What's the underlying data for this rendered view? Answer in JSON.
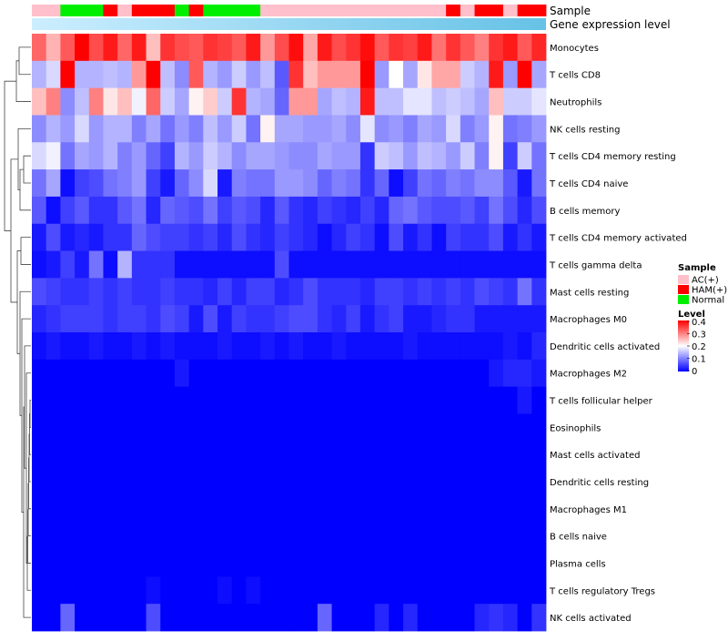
{
  "chart_data": {
    "type": "heatmap",
    "title": "",
    "annotation_labels": [
      "Sample",
      "Gene expression level"
    ],
    "legend_sample_title": "Sample",
    "legend_sample_entries": [
      {
        "name": "AC(+)",
        "color": "#ffc0cb"
      },
      {
        "name": "HAM(+)",
        "color": "#ff0000"
      },
      {
        "name": "Normal",
        "color": "#00ee00"
      }
    ],
    "legend_level_title": "Level",
    "legend_level_ticks": [
      "0.4",
      "0.3",
      "0.2",
      "0.1",
      "0"
    ],
    "color_scale": {
      "min": 0,
      "mid": 0.2,
      "max": 0.4,
      "low_color": "#0000ff",
      "mid_color": "#ffffff",
      "high_color": "#ff0000"
    },
    "expression_gradient": {
      "from": "#cceeff",
      "to": "#66c2e6"
    },
    "sample_groups": [
      "AC(+)",
      "AC(+)",
      "Normal",
      "Normal",
      "Normal",
      "HAM(+)",
      "AC(+)",
      "HAM(+)",
      "HAM(+)",
      "HAM(+)",
      "Normal",
      "HAM(+)",
      "Normal",
      "Normal",
      "Normal",
      "Normal",
      "AC(+)",
      "AC(+)",
      "AC(+)",
      "AC(+)",
      "AC(+)",
      "AC(+)",
      "AC(+)",
      "AC(+)",
      "AC(+)",
      "AC(+)",
      "AC(+)",
      "AC(+)",
      "AC(+)",
      "HAM(+)",
      "AC(+)",
      "HAM(+)",
      "HAM(+)",
      "AC(+)",
      "HAM(+)",
      "HAM(+)"
    ],
    "rows": [
      "Monocytes",
      "T cells CD8",
      "Neutrophils",
      "NK cells resting",
      "T cells CD4 memory resting",
      "T cells CD4 naive",
      "B cells memory",
      "T cells CD4 memory activated",
      "T cells gamma delta",
      "Mast cells resting",
      "Macrophages M0",
      "Dendritic cells activated",
      "Macrophages M2",
      "T cells follicular helper",
      "Eosinophils",
      "Mast cells activated",
      "Dendritic cells resting",
      "Macrophages M1",
      "B cells naive",
      "Plasma cells",
      "T cells regulatory  Tregs",
      "NK cells activated"
    ],
    "values": [
      [
        0.32,
        0.26,
        0.33,
        0.4,
        0.34,
        0.38,
        0.32,
        0.38,
        0.25,
        0.36,
        0.34,
        0.33,
        0.36,
        0.35,
        0.33,
        0.38,
        0.28,
        0.34,
        0.39,
        0.27,
        0.38,
        0.34,
        0.36,
        0.39,
        0.33,
        0.36,
        0.35,
        0.38,
        0.31,
        0.36,
        0.33,
        0.3,
        0.36,
        0.38,
        0.33,
        0.37
      ],
      [
        0.14,
        0.17,
        0.4,
        0.14,
        0.14,
        0.15,
        0.14,
        0.28,
        0.4,
        0.15,
        0.11,
        0.33,
        0.14,
        0.12,
        0.16,
        0.12,
        0.15,
        0.07,
        0.36,
        0.25,
        0.28,
        0.28,
        0.28,
        0.4,
        0.12,
        0.2,
        0.13,
        0.22,
        0.27,
        0.27,
        0.16,
        0.14,
        0.38,
        0.12,
        0.4,
        0.13
      ],
      [
        0.25,
        0.3,
        0.11,
        0.15,
        0.3,
        0.22,
        0.25,
        0.19,
        0.32,
        0.16,
        0.13,
        0.21,
        0.24,
        0.16,
        0.36,
        0.14,
        0.13,
        0.08,
        0.28,
        0.28,
        0.13,
        0.15,
        0.14,
        0.38,
        0.15,
        0.15,
        0.18,
        0.18,
        0.15,
        0.16,
        0.15,
        0.13,
        0.25,
        0.16,
        0.16,
        0.18
      ],
      [
        0.11,
        0.14,
        0.12,
        0.17,
        0.12,
        0.14,
        0.14,
        0.1,
        0.13,
        0.09,
        0.12,
        0.1,
        0.15,
        0.12,
        0.16,
        0.09,
        0.21,
        0.13,
        0.13,
        0.12,
        0.12,
        0.13,
        0.11,
        0.18,
        0.11,
        0.12,
        0.1,
        0.13,
        0.12,
        0.17,
        0.1,
        0.12,
        0.21,
        0.09,
        0.1,
        0.12
      ],
      [
        0.17,
        0.19,
        0.09,
        0.13,
        0.12,
        0.14,
        0.1,
        0.12,
        0.08,
        0.05,
        0.14,
        0.12,
        0.16,
        0.14,
        0.11,
        0.13,
        0.13,
        0.12,
        0.11,
        0.11,
        0.13,
        0.12,
        0.12,
        0.04,
        0.16,
        0.15,
        0.12,
        0.15,
        0.14,
        0.12,
        0.16,
        0.1,
        0.21,
        0.05,
        0.16,
        0.09
      ],
      [
        0.09,
        0.13,
        0.01,
        0.05,
        0.06,
        0.09,
        0.1,
        0.12,
        0.05,
        0.02,
        0.08,
        0.11,
        0.17,
        0.02,
        0.1,
        0.09,
        0.09,
        0.12,
        0.12,
        0.11,
        0.08,
        0.1,
        0.09,
        0.04,
        0.08,
        0.01,
        0.05,
        0.09,
        0.08,
        0.1,
        0.09,
        0.11,
        0.11,
        0.07,
        0.02,
        0.09
      ],
      [
        0.07,
        0.01,
        0.05,
        0.07,
        0.04,
        0.04,
        0.07,
        0.09,
        0.03,
        0.08,
        0.07,
        0.06,
        0.09,
        0.05,
        0.07,
        0.06,
        0.03,
        0.07,
        0.04,
        0.03,
        0.05,
        0.04,
        0.03,
        0.05,
        0.03,
        0.08,
        0.09,
        0.07,
        0.06,
        0.06,
        0.07,
        0.05,
        0.09,
        0.06,
        0.03,
        0.06
      ],
      [
        0.02,
        0.06,
        0.02,
        0.03,
        0.02,
        0.04,
        0.04,
        0.08,
        0.06,
        0.05,
        0.05,
        0.04,
        0.05,
        0.03,
        0.06,
        0.04,
        0.03,
        0.05,
        0.04,
        0.03,
        0.01,
        0.03,
        0.05,
        0.04,
        0.01,
        0.06,
        0.02,
        0.04,
        0.01,
        0.05,
        0.04,
        0.04,
        0.06,
        0.02,
        0.04,
        0.02
      ],
      [
        0.01,
        0.02,
        0.05,
        0.02,
        0.09,
        0.01,
        0.14,
        0.04,
        0.04,
        0.04,
        0.01,
        0.01,
        0.01,
        0.01,
        0.01,
        0.01,
        0.01,
        0.06,
        0.01,
        0.01,
        0.01,
        0.01,
        0.01,
        0.01,
        0.01,
        0.01,
        0.01,
        0.01,
        0.01,
        0.01,
        0.01,
        0.01,
        0.01,
        0.01,
        0.01,
        0.01
      ],
      [
        0.06,
        0.05,
        0.04,
        0.04,
        0.05,
        0.04,
        0.05,
        0.04,
        0.04,
        0.05,
        0.04,
        0.04,
        0.03,
        0.05,
        0.03,
        0.05,
        0.05,
        0.03,
        0.04,
        0.06,
        0.04,
        0.04,
        0.04,
        0.03,
        0.05,
        0.05,
        0.04,
        0.05,
        0.04,
        0.05,
        0.04,
        0.06,
        0.05,
        0.04,
        0.09,
        0.04
      ],
      [
        0.03,
        0.04,
        0.05,
        0.05,
        0.05,
        0.04,
        0.05,
        0.05,
        0.04,
        0.06,
        0.05,
        0.02,
        0.06,
        0.02,
        0.05,
        0.04,
        0.04,
        0.05,
        0.06,
        0.06,
        0.04,
        0.03,
        0.05,
        0.02,
        0.04,
        0.05,
        0.02,
        0.02,
        0.03,
        0.04,
        0.04,
        0.02,
        0.02,
        0.02,
        0.02,
        0.02
      ],
      [
        0.01,
        0.02,
        0.01,
        0.01,
        0.02,
        0.01,
        0.01,
        0.02,
        0.01,
        0.02,
        0.01,
        0.01,
        0.01,
        0.02,
        0.01,
        0.01,
        0.02,
        0.01,
        0.02,
        0.01,
        0.01,
        0.02,
        0.01,
        0.01,
        0.01,
        0.01,
        0.02,
        0.01,
        0.01,
        0.01,
        0.01,
        0.01,
        0.01,
        0.02,
        0.01,
        0.03
      ],
      [
        0.0,
        0.0,
        0.0,
        0.0,
        0.0,
        0.0,
        0.0,
        0.0,
        0.0,
        0.0,
        0.02,
        0.0,
        0.0,
        0.0,
        0.0,
        0.0,
        0.0,
        0.0,
        0.0,
        0.0,
        0.0,
        0.0,
        0.0,
        0.0,
        0.0,
        0.0,
        0.0,
        0.0,
        0.0,
        0.0,
        0.0,
        0.0,
        0.02,
        0.03,
        0.03,
        0.02
      ],
      [
        0.0,
        0.0,
        0.0,
        0.0,
        0.0,
        0.0,
        0.0,
        0.0,
        0.0,
        0.0,
        0.0,
        0.0,
        0.0,
        0.0,
        0.0,
        0.0,
        0.0,
        0.0,
        0.0,
        0.0,
        0.0,
        0.0,
        0.0,
        0.0,
        0.0,
        0.0,
        0.0,
        0.0,
        0.0,
        0.0,
        0.0,
        0.0,
        0.0,
        0.0,
        0.02,
        0.0
      ],
      [
        0.0,
        0.0,
        0.0,
        0.0,
        0.0,
        0.0,
        0.0,
        0.0,
        0.0,
        0.0,
        0.0,
        0.0,
        0.0,
        0.0,
        0.0,
        0.0,
        0.0,
        0.0,
        0.0,
        0.0,
        0.0,
        0.0,
        0.0,
        0.0,
        0.0,
        0.0,
        0.0,
        0.0,
        0.0,
        0.0,
        0.0,
        0.0,
        0.0,
        0.0,
        0.0,
        0.0
      ],
      [
        0.0,
        0.0,
        0.0,
        0.0,
        0.0,
        0.0,
        0.0,
        0.0,
        0.0,
        0.0,
        0.0,
        0.0,
        0.0,
        0.0,
        0.0,
        0.0,
        0.0,
        0.0,
        0.0,
        0.0,
        0.0,
        0.0,
        0.0,
        0.0,
        0.0,
        0.0,
        0.0,
        0.0,
        0.0,
        0.0,
        0.0,
        0.0,
        0.0,
        0.0,
        0.0,
        0.0
      ],
      [
        0.0,
        0.0,
        0.0,
        0.0,
        0.0,
        0.0,
        0.0,
        0.0,
        0.0,
        0.0,
        0.0,
        0.0,
        0.0,
        0.0,
        0.0,
        0.0,
        0.0,
        0.0,
        0.0,
        0.0,
        0.0,
        0.0,
        0.0,
        0.0,
        0.0,
        0.0,
        0.0,
        0.0,
        0.0,
        0.0,
        0.0,
        0.0,
        0.0,
        0.0,
        0.0,
        0.0
      ],
      [
        0.0,
        0.0,
        0.0,
        0.0,
        0.0,
        0.0,
        0.0,
        0.0,
        0.0,
        0.0,
        0.0,
        0.0,
        0.0,
        0.0,
        0.0,
        0.0,
        0.0,
        0.0,
        0.0,
        0.0,
        0.0,
        0.0,
        0.0,
        0.0,
        0.0,
        0.0,
        0.0,
        0.0,
        0.0,
        0.0,
        0.0,
        0.0,
        0.0,
        0.0,
        0.0,
        0.0
      ],
      [
        0.0,
        0.0,
        0.0,
        0.0,
        0.0,
        0.0,
        0.0,
        0.0,
        0.0,
        0.0,
        0.0,
        0.0,
        0.0,
        0.0,
        0.0,
        0.0,
        0.0,
        0.0,
        0.0,
        0.0,
        0.0,
        0.0,
        0.0,
        0.0,
        0.0,
        0.0,
        0.0,
        0.0,
        0.0,
        0.0,
        0.0,
        0.0,
        0.0,
        0.0,
        0.0,
        0.0
      ],
      [
        0.0,
        0.0,
        0.0,
        0.0,
        0.0,
        0.0,
        0.0,
        0.0,
        0.0,
        0.0,
        0.0,
        0.0,
        0.0,
        0.0,
        0.0,
        0.0,
        0.0,
        0.0,
        0.0,
        0.0,
        0.0,
        0.0,
        0.0,
        0.0,
        0.0,
        0.0,
        0.0,
        0.0,
        0.0,
        0.0,
        0.0,
        0.0,
        0.0,
        0.0,
        0.0,
        0.0
      ],
      [
        0.0,
        0.0,
        0.0,
        0.0,
        0.0,
        0.0,
        0.0,
        0.0,
        0.01,
        0.0,
        0.0,
        0.0,
        0.0,
        0.01,
        0.0,
        0.01,
        0.0,
        0.0,
        0.0,
        0.0,
        0.0,
        0.0,
        0.0,
        0.0,
        0.0,
        0.0,
        0.0,
        0.0,
        0.0,
        0.0,
        0.0,
        0.0,
        0.0,
        0.0,
        0.0,
        0.0
      ],
      [
        0.0,
        0.0,
        0.08,
        0.0,
        0.0,
        0.0,
        0.0,
        0.0,
        0.06,
        0.0,
        0.0,
        0.0,
        0.0,
        0.0,
        0.0,
        0.0,
        0.0,
        0.0,
        0.0,
        0.0,
        0.08,
        0.0,
        0.0,
        0.0,
        0.03,
        0.0,
        0.03,
        0.0,
        0.0,
        0.0,
        0.0,
        0.03,
        0.04,
        0.03,
        0.0,
        0.04
      ]
    ]
  }
}
